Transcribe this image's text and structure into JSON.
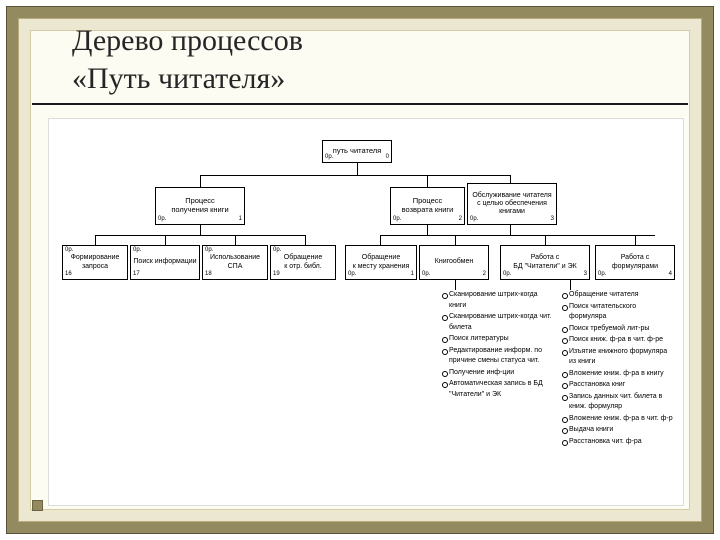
{
  "theme": {
    "bg_outer": "#938a5f",
    "bg_mid": "#ece7d0",
    "bg_inner": "#fdfcf2",
    "border_dark": "#5a533a",
    "text": "#262626"
  },
  "title_line1": "Дерево процессов",
  "title_line2": "«Путь читателя»",
  "nodes": {
    "root": {
      "label": "путь читателя",
      "fl": "0р.",
      "fr": "0"
    },
    "p1": {
      "label": "Процесс\nполучения книги",
      "fl": "0р.",
      "fr": "1"
    },
    "p2": {
      "label": "Процесс\nвозврата книги",
      "fl": "0р.",
      "fr": "2"
    },
    "p3": {
      "label": "Обслуживание читателя\nс целью обеспечения\nкнигами",
      "fl": "0р.",
      "fr": "3"
    },
    "c11": {
      "head": "0р.",
      "label": "Формирование\nзапроса",
      "fl": "16"
    },
    "c12": {
      "head": "0р.",
      "label": "Поиск информации",
      "fl": "17"
    },
    "c13": {
      "head": "0р.",
      "label": "Использование\nСПА",
      "fl": "18"
    },
    "c14": {
      "head": "0р.",
      "label": "Обращение\nк отр. библ.",
      "fl": "19"
    },
    "c21": {
      "label": "Обращение\nк месту хранения",
      "fl": "0р.",
      "fr": "1"
    },
    "c22": {
      "label": "Книгообмен",
      "fl": "0р.",
      "fr": "2"
    },
    "c23": {
      "label": "Работа с\nБД \"Читатели\" и ЭК",
      "fl": "0р.",
      "fr": "3"
    },
    "c24": {
      "label": "Работа с\nформулярами",
      "fl": "0р.",
      "fr": "4"
    }
  },
  "bullets_left": [
    "Сканирование штрих-когда книги",
    "Сканирование штрих-когда чит. билета",
    "Поиск литературы",
    "Редактирование информ. по причине смены статуса чит.",
    "Получение инф-ции",
    "Автоматическая запись в БД \"Читатели\" и ЭК"
  ],
  "bullets_right": [
    "Обращение читателя",
    "Поиск читательского формуляра",
    "Поиск требуемой лит-ры",
    "Поиск книж. ф-ра в чит. ф-ре",
    "Изъятие книжного формуляра из книги",
    "Вложение книж. ф-ра в книгу",
    "Расстановка книг",
    "Запись данных чит. билета в книж. формуляр",
    "Вложение книж. ф-ра в чит. ф-р",
    "Выдача книги",
    "Расстановка чит. ф-ра"
  ]
}
